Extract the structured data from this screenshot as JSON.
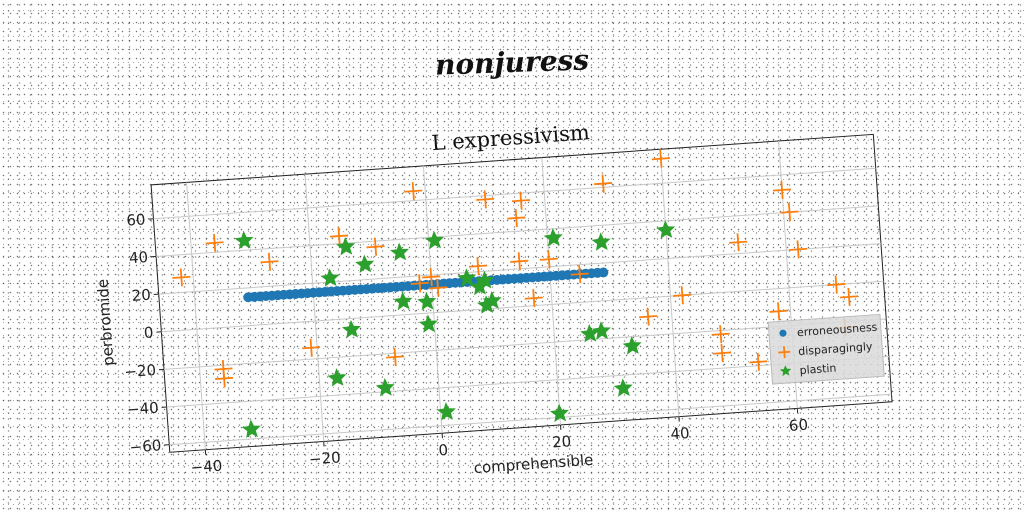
{
  "figure_title": "nonjuress",
  "chart_data": {
    "type": "scatter",
    "title": "L expressivism",
    "xlabel": "comprehensible",
    "ylabel": "perbromide",
    "xlim": [
      -46,
      76
    ],
    "ylim": [
      -64,
      78
    ],
    "xticks": [
      -40,
      -20,
      0,
      20,
      40,
      60
    ],
    "yticks": [
      -60,
      -40,
      -20,
      0,
      20,
      40,
      60
    ],
    "grid": true,
    "legend_position": "lower-right",
    "series": [
      {
        "name": "erroneousness",
        "marker": "circle",
        "color": "#1f77b4",
        "x": [
          -31,
          -30,
          -29,
          -28,
          -27,
          -26,
          -25,
          -24,
          -23,
          -22,
          -21,
          -20,
          -19,
          -18,
          -17,
          -16,
          -15,
          -14,
          -13,
          -12,
          -11,
          -10,
          -9,
          -8,
          -7,
          -6,
          -5,
          -4,
          -3,
          -2,
          -1,
          0,
          1,
          2,
          3,
          4,
          5,
          6,
          7,
          8,
          9,
          10,
          11,
          12,
          13,
          14,
          15,
          16,
          17,
          18,
          19,
          20,
          21,
          22,
          23,
          24,
          25,
          26,
          27,
          28,
          29
        ],
        "y": [
          15,
          15,
          15,
          15,
          15,
          15,
          15,
          15,
          15,
          15,
          15,
          15,
          15,
          15,
          15,
          15,
          15,
          15,
          15,
          15,
          15,
          15,
          15,
          15,
          15,
          15,
          15,
          15,
          15,
          15,
          15,
          15,
          15,
          15,
          15,
          15,
          15,
          15,
          15,
          15,
          15,
          15,
          15,
          15,
          15,
          15,
          15,
          15,
          15,
          15,
          15,
          15,
          15,
          15,
          15,
          15,
          15,
          15,
          15,
          15,
          15
        ]
      },
      {
        "name": "disparagingly",
        "marker": "plus",
        "color": "#ff7f0e",
        "x": [
          -42,
          -36,
          -36,
          -36,
          -27,
          -21,
          -15,
          -9,
          -7,
          -2,
          -2,
          0,
          1,
          8,
          10,
          15,
          15,
          16,
          17,
          20,
          25,
          30,
          36,
          40,
          42,
          48,
          48,
          52,
          54,
          58,
          60,
          61,
          62,
          68,
          69,
          70
        ],
        "y": [
          28,
          45,
          -22,
          -27,
          33,
          -14,
          44,
          37,
          -22,
          16,
          65,
          19,
          13,
          23,
          58,
          47,
          24,
          56,
          4,
          24,
          15,
          62,
          -10,
          73,
          0,
          -22,
          -32,
          26,
          -38,
          -12,
          52,
          40,
          20,
          0,
          -23,
          -7
        ]
      },
      {
        "name": "plastin",
        "marker": "star",
        "color": "#2ca02c",
        "x": [
          -31,
          -32,
          -17,
          -17,
          -14,
          -14,
          -11,
          -9,
          -5,
          -5,
          -1,
          -1,
          1,
          1,
          6,
          8,
          9,
          9,
          10,
          20,
          21,
          26,
          28,
          29,
          31,
          33,
          40
        ],
        "y": [
          45,
          -55,
          22,
          -31,
          38,
          -6,
          28,
          -38,
          33,
          7,
          6,
          -6,
          38,
          -53,
          17,
          12,
          15,
          2,
          4,
          -58,
          35,
          -17,
          -16,
          31,
          -47,
          -25,
          35
        ]
      }
    ]
  }
}
